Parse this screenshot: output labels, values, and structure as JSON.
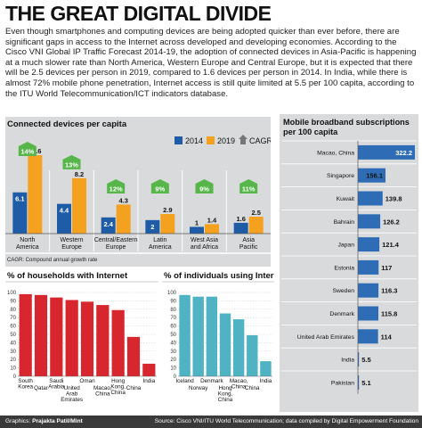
{
  "header": {
    "title": "THE GREAT DIGITAL DIVIDE",
    "intro": "Even though smartphones and computing devices are being adopted quicker than ever before, there are significant gaps in access to the Internet across developed and developing economies. According to the Cisco VNI Global IP Traffic Forecast 2014-19, the adoption of connected devices in Asia-Pacific is happening at a much slower rate than North America, Western Europe and Central Europe, but it is expected that there will be 2.5 devices per person in 2019, compared to 1.6 devices per person in 2014. In India, while there is almost 72% mobile phone penetration, Internet access is still quite limited at 5.5 per 100 capita, according to the ITU World Telecommunication/ICT indicators database."
  },
  "footer": {
    "graphics_label": "Graphics: ",
    "graphics_name": "Prajakta Patil/Mint",
    "source": "Source: Cisco VNI/ITU World Telecommunication; data compiled by Digital Empowerment Foundation"
  },
  "colors": {
    "series_2014": "#1f5ca8",
    "series_2019": "#f4a11f",
    "cagr": "#56b64a",
    "households": "#d7262d",
    "individuals": "#4fb3c3",
    "mobile": "#2e6db5",
    "panel_bg": "#d9dadb"
  },
  "chart_data": [
    {
      "type": "bar",
      "title": "Connected devices per capita",
      "categories": [
        "North\nAmerica",
        "Western\nEurope",
        "Central/Eastern\nEurope",
        "Latin\nAmerica",
        "West Asia\nand Africa",
        "Asia\nPacific"
      ],
      "series": [
        {
          "name": "2014",
          "values": [
            6.1,
            4.4,
            2.4,
            2,
            1,
            1.6
          ]
        },
        {
          "name": "2019",
          "values": [
            11.6,
            8.2,
            4.3,
            2.9,
            1.4,
            2.5
          ]
        }
      ],
      "value_labels": {
        "2014": [
          "6.1",
          "4.4",
          "2.4",
          "2",
          "1",
          "1.6"
        ],
        "2019": [
          "11.6",
          "8.2",
          "4.3",
          "2.9",
          "1.4",
          "2.5"
        ]
      },
      "cagr": [
        "14%",
        "13%",
        "12%",
        "9%",
        "9%",
        "11%"
      ],
      "legend": {
        "2014": "2014",
        "2019": "2019",
        "cagr": "CAGR"
      },
      "note": "CAGR: Compound annual growth rate",
      "ylim": [
        0,
        12
      ]
    },
    {
      "type": "bar",
      "title": "% of households with Internet",
      "categories": [
        "South Korea",
        "Qatar",
        "Saudi Arabia",
        "United Arab Emirates",
        "Oman",
        "Macao, China",
        "Hong Kong, China",
        "China",
        "India"
      ],
      "category_labels": [
        "South\nKorea",
        "Qatar",
        "Saudi\nArabia",
        "United\nArab\nEmirates",
        "Oman",
        "Macao,\nChina",
        "Hong\nKong,\nChina",
        "China",
        "India"
      ],
      "values": [
        98,
        97,
        94,
        91,
        89,
        85,
        79,
        47,
        15
      ],
      "yticks": [
        "0",
        "10",
        "20",
        "30",
        "40",
        "50",
        "60",
        "70",
        "80",
        "90",
        "100"
      ],
      "ylim": [
        0,
        100
      ]
    },
    {
      "type": "bar",
      "title": "% of individuals using Internet",
      "categories": [
        "Iceland",
        "Norway",
        "Denmark",
        "Hong Kong, China",
        "Macao, China",
        "China",
        "India"
      ],
      "category_labels": [
        "Iceland",
        "Norway",
        "Denmark",
        "Hong\nKong,\nChina",
        "Macao,\nChina",
        "China",
        "India"
      ],
      "values": [
        97,
        95,
        95,
        75,
        68,
        49,
        18
      ],
      "yticks": [
        "0",
        "10",
        "20",
        "30",
        "40",
        "50",
        "60",
        "70",
        "80",
        "90",
        "100"
      ],
      "ylim": [
        0,
        100
      ]
    },
    {
      "type": "bar",
      "orientation": "horizontal",
      "title": "Mobile broadband subscriptions per 100 capita",
      "title_lines": [
        "Mobile broadband subscriptions",
        "per 100 capita"
      ],
      "categories": [
        "Macao, China",
        "Singapore",
        "Kuwait",
        "Bahrain",
        "Japan",
        "Estonia",
        "Sweden",
        "Denmark",
        "United Arab Emirates",
        "India",
        "Pakistan"
      ],
      "values": [
        322.2,
        156.1,
        139.8,
        126.2,
        121.4,
        117,
        116.3,
        115.8,
        114,
        5.5,
        5.1
      ],
      "value_labels": [
        "322.2",
        "156.1",
        "139.8",
        "126.2",
        "121.4",
        "117",
        "116.3",
        "115.8",
        "114",
        "5.5",
        "5.1"
      ]
    }
  ]
}
